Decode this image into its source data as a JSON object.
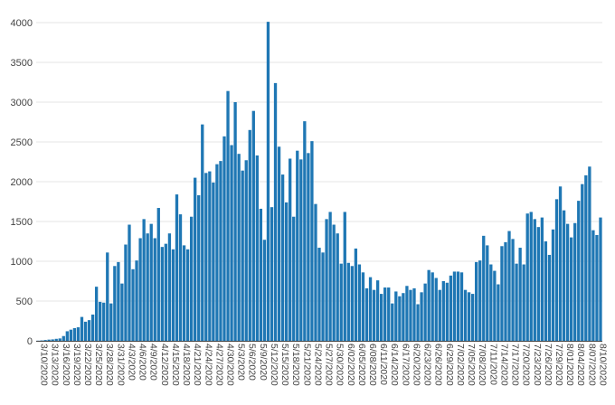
{
  "chart_data": {
    "type": "bar",
    "title": "",
    "xlabel": "",
    "ylabel": "",
    "ylim": [
      0,
      4000
    ],
    "yticks": [
      0,
      500,
      1000,
      1500,
      2000,
      2500,
      3000,
      3500,
      4000
    ],
    "grid": true,
    "legend": "none",
    "start_label": "3/10/2020",
    "tick_labels": [
      "3/10/2020",
      "3/13/2020",
      "3/16/2020",
      "3/19/2020",
      "3/22/2020",
      "3/25/2020",
      "3/28/2020",
      "3/31/2020",
      "4/3/2020",
      "4/6/2020",
      "4/9/2020",
      "4/12/2020",
      "4/15/2020",
      "4/18/2020",
      "4/21/2020",
      "4/24/2020",
      "4/27/2020",
      "4/30/2020",
      "5/3/2020",
      "5/6/2020",
      "5/9/2020",
      "5/12/2020",
      "5/15/2020",
      "5/18/2020",
      "5/21/2020",
      "5/24/2020",
      "5/27/2020",
      "5/30/2020",
      "6/02/2020",
      "6/05/2020",
      "6/08/2020",
      "6/11/2020",
      "6/14/2020",
      "6/17/2020",
      "6/20/2020",
      "6/23/2020",
      "6/26/2020",
      "6/29/2020",
      "7/02/2020",
      "7/05/2020",
      "7/08/2020",
      "7/11/2020",
      "7/14/2020",
      "7/17/2020",
      "7/20/2020",
      "7/23/2020",
      "7/26/2020",
      "7/29/2020",
      "8/01/2020",
      "8/04/2020",
      "8/07/2020",
      "8/10/2020"
    ],
    "colors": {
      "bar": "#1f77b4",
      "grid": "#e6e6e6",
      "axis": "#444444"
    },
    "values": [
      2,
      5,
      10,
      15,
      18,
      25,
      30,
      60,
      120,
      140,
      160,
      170,
      300,
      240,
      260,
      330,
      680,
      490,
      480,
      1110,
      470,
      940,
      990,
      720,
      1210,
      1460,
      900,
      1010,
      1290,
      1530,
      1350,
      1470,
      1290,
      1670,
      1180,
      1220,
      1350,
      1150,
      1840,
      1590,
      1200,
      1150,
      1560,
      2050,
      1830,
      2720,
      2110,
      2130,
      1990,
      2220,
      2260,
      2570,
      3140,
      2460,
      3000,
      2350,
      2140,
      2270,
      2650,
      2890,
      2330,
      1660,
      1270,
      4010,
      1680,
      3240,
      2440,
      2090,
      1740,
      2290,
      1560,
      2390,
      2280,
      2760,
      2360,
      2510,
      1720,
      1170,
      1110,
      1530,
      1620,
      1460,
      1350,
      970,
      1620,
      980,
      940,
      1160,
      960,
      860,
      660,
      800,
      640,
      760,
      590,
      670,
      670,
      470,
      620,
      560,
      600,
      690,
      640,
      660,
      460,
      610,
      720,
      890,
      860,
      790,
      640,
      750,
      730,
      820,
      870,
      870,
      860,
      640,
      610,
      590,
      990,
      1010,
      1320,
      1200,
      960,
      880,
      710,
      1190,
      1240,
      1380,
      1280,
      970,
      1170,
      960,
      1600,
      1620,
      1530,
      1430,
      1550,
      1250,
      1080,
      1400,
      1780,
      1940,
      1640,
      1470,
      1300,
      1480,
      1760,
      1970,
      2080,
      2190,
      1390,
      1330,
      1550
    ]
  }
}
